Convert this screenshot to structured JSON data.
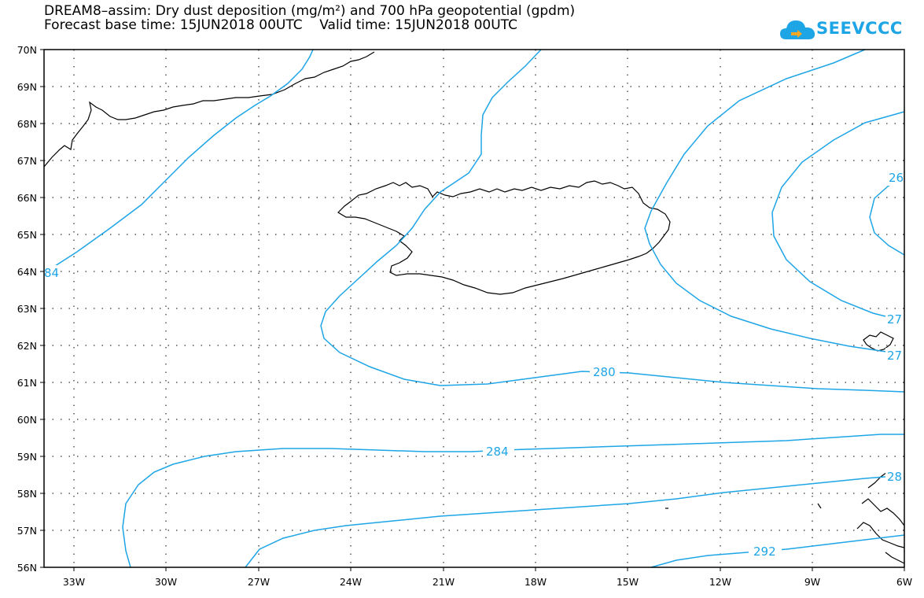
{
  "header": {
    "title_line_1": "DREAM8–assim: Dry dust deposition (mg/m²) and 700 hPa geopotential (gpdm)",
    "title_line_2": "Forecast base time: 15JUN2018 00UTC    Valid time: 15JUN2018 00UTC"
  },
  "logo": {
    "text": "SEEVCCC",
    "icon": "cloud-icon"
  },
  "colors": {
    "contour": "#1ea5e6",
    "coastline": "#000000",
    "grid": "#000000",
    "frame": "#000000"
  },
  "map": {
    "projection": "lat-lon",
    "grid_style": "dotted",
    "lon_labels": [
      "33W",
      "30W",
      "27W",
      "24W",
      "21W",
      "18W",
      "15W",
      "12W",
      "9W",
      "6W"
    ],
    "lat_labels": [
      "70N",
      "69N",
      "68N",
      "67N",
      "66N",
      "65N",
      "64N",
      "63N",
      "62N",
      "61N",
      "60N",
      "59N",
      "58N",
      "57N",
      "56N"
    ],
    "contour_labels": [
      "84",
      "280",
      "284",
      "28",
      "292",
      "26",
      "27",
      "27"
    ],
    "features": [
      "Iceland coastline",
      "Greenland coast",
      "Faroe Islands",
      "Scotland coast"
    ]
  }
}
